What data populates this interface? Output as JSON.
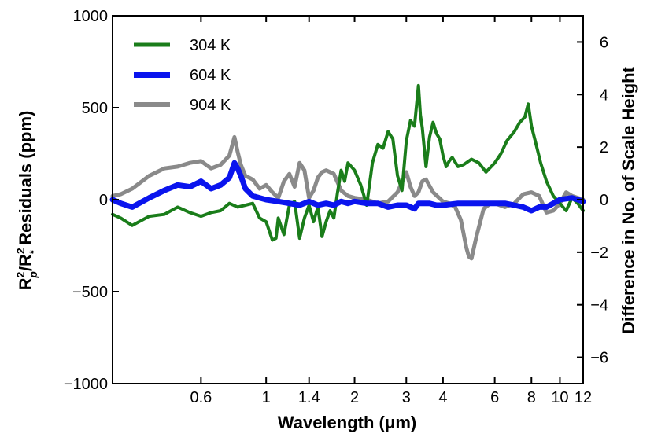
{
  "chart_data": {
    "type": "line",
    "xlabel": "Wavelength (μm)",
    "ylabel_left": "R_p^2/R_*^2 Residuals (ppm)",
    "ylabel_right": "Difference in No. of Scale Height",
    "x_scale": "log",
    "xlim": [
      0.3,
      12
    ],
    "ylim_left": [
      -1000,
      1000
    ],
    "ylim_right": [
      -7,
      7
    ],
    "x_ticks": [
      {
        "value": 0.6,
        "label": "0.6"
      },
      {
        "value": 1,
        "label": "1"
      },
      {
        "value": 1.4,
        "label": "1.4"
      },
      {
        "value": 2,
        "label": "2"
      },
      {
        "value": 3,
        "label": "3"
      },
      {
        "value": 4,
        "label": "4"
      },
      {
        "value": 6,
        "label": "6"
      },
      {
        "value": 8,
        "label": "8"
      },
      {
        "value": 10,
        "label": "10"
      },
      {
        "value": 12,
        "label": "12"
      }
    ],
    "y_ticks_left": [
      {
        "value": 1000,
        "label": "1000"
      },
      {
        "value": 500,
        "label": "500"
      },
      {
        "value": 0,
        "label": "0"
      },
      {
        "value": -500,
        "label": "−500"
      },
      {
        "value": -1000,
        "label": "−1000"
      }
    ],
    "y_ticks_right": [
      {
        "value": 6,
        "label": "6"
      },
      {
        "value": 4,
        "label": "4"
      },
      {
        "value": 2,
        "label": "2"
      },
      {
        "value": 0,
        "label": "0"
      },
      {
        "value": -2,
        "label": "−2"
      },
      {
        "value": -4,
        "label": "−4"
      },
      {
        "value": -6,
        "label": "−6"
      }
    ],
    "legend_position": "top-left",
    "series": [
      {
        "name": "304 K",
        "color": "#1a7d1a",
        "width": 4,
        "x": [
          0.3,
          0.32,
          0.35,
          0.4,
          0.45,
          0.5,
          0.55,
          0.6,
          0.65,
          0.7,
          0.75,
          0.8,
          0.85,
          0.9,
          0.95,
          1.0,
          1.05,
          1.08,
          1.1,
          1.15,
          1.2,
          1.25,
          1.3,
          1.35,
          1.4,
          1.45,
          1.5,
          1.55,
          1.6,
          1.65,
          1.7,
          1.75,
          1.8,
          1.85,
          1.9,
          2.0,
          2.1,
          2.2,
          2.3,
          2.4,
          2.5,
          2.6,
          2.7,
          2.8,
          2.9,
          3.0,
          3.1,
          3.2,
          3.3,
          3.35,
          3.4,
          3.5,
          3.6,
          3.7,
          3.8,
          3.9,
          4.0,
          4.1,
          4.2,
          4.3,
          4.5,
          4.7,
          5.0,
          5.3,
          5.6,
          6.0,
          6.3,
          6.6,
          7.0,
          7.3,
          7.6,
          7.8,
          8.0,
          8.3,
          8.6,
          9.0,
          9.5,
          10.0,
          10.5,
          11.0,
          11.5,
          12.0
        ],
        "y": [
          -80,
          -100,
          -140,
          -90,
          -80,
          -40,
          -70,
          -90,
          -70,
          -60,
          -20,
          -40,
          -30,
          -20,
          -100,
          -120,
          -220,
          -210,
          -100,
          -190,
          -30,
          -10,
          -210,
          -100,
          -30,
          -120,
          -40,
          -200,
          -120,
          -60,
          -100,
          40,
          160,
          100,
          200,
          160,
          80,
          -30,
          200,
          300,
          280,
          370,
          330,
          130,
          50,
          320,
          430,
          400,
          620,
          460,
          390,
          180,
          340,
          420,
          360,
          330,
          240,
          180,
          210,
          230,
          180,
          190,
          220,
          200,
          150,
          200,
          250,
          320,
          370,
          420,
          450,
          520,
          400,
          300,
          200,
          100,
          20,
          -20,
          -60,
          10,
          -20,
          -60
        ]
      },
      {
        "name": "604 K",
        "color": "#0a14ee",
        "width": 7,
        "x": [
          0.3,
          0.32,
          0.35,
          0.4,
          0.45,
          0.5,
          0.55,
          0.6,
          0.65,
          0.7,
          0.75,
          0.78,
          0.8,
          0.82,
          0.85,
          0.9,
          0.95,
          1.0,
          1.1,
          1.2,
          1.3,
          1.4,
          1.5,
          1.6,
          1.7,
          1.8,
          1.9,
          2.0,
          2.2,
          2.4,
          2.6,
          2.8,
          3.0,
          3.2,
          3.3,
          3.4,
          3.6,
          3.8,
          4.0,
          4.5,
          5.0,
          5.5,
          6.0,
          6.5,
          7.0,
          7.5,
          8.0,
          8.5,
          9.0,
          9.5,
          10.0,
          11.0,
          12.0
        ],
        "y": [
          0,
          -20,
          -40,
          10,
          50,
          80,
          70,
          100,
          60,
          80,
          120,
          200,
          170,
          130,
          60,
          20,
          10,
          0,
          -10,
          -20,
          -30,
          -10,
          -30,
          -20,
          -30,
          -10,
          -20,
          -10,
          -20,
          -20,
          -40,
          -30,
          -30,
          -50,
          -20,
          -20,
          -20,
          -30,
          -30,
          -20,
          -20,
          -20,
          -20,
          -20,
          -30,
          -40,
          -60,
          -40,
          -40,
          -20,
          0,
          10,
          -10
        ]
      },
      {
        "name": "904 K",
        "color": "#8a8a8a",
        "width": 5,
        "x": [
          0.3,
          0.32,
          0.35,
          0.4,
          0.45,
          0.5,
          0.55,
          0.6,
          0.65,
          0.7,
          0.75,
          0.78,
          0.8,
          0.82,
          0.85,
          0.9,
          0.95,
          1.0,
          1.05,
          1.1,
          1.15,
          1.2,
          1.25,
          1.3,
          1.35,
          1.4,
          1.45,
          1.5,
          1.55,
          1.6,
          1.7,
          1.8,
          1.9,
          2.0,
          2.2,
          2.4,
          2.6,
          2.8,
          3.0,
          3.1,
          3.2,
          3.3,
          3.4,
          3.5,
          3.7,
          4.0,
          4.2,
          4.4,
          4.6,
          4.8,
          4.9,
          5.0,
          5.2,
          5.5,
          5.8,
          6.0,
          6.5,
          7.0,
          7.5,
          8.0,
          8.5,
          9.0,
          9.5,
          10.0,
          10.5,
          11.0,
          12.0
        ],
        "y": [
          20,
          30,
          60,
          130,
          170,
          180,
          200,
          210,
          170,
          190,
          240,
          340,
          260,
          190,
          130,
          110,
          60,
          80,
          40,
          10,
          100,
          140,
          70,
          200,
          160,
          10,
          50,
          120,
          150,
          160,
          140,
          50,
          20,
          10,
          0,
          -20,
          -10,
          40,
          150,
          70,
          20,
          40,
          100,
          110,
          40,
          -10,
          -20,
          -40,
          -110,
          -260,
          -310,
          -320,
          -200,
          -50,
          -20,
          -20,
          -40,
          -20,
          30,
          40,
          20,
          -70,
          -60,
          -20,
          40,
          20,
          0
        ]
      }
    ]
  }
}
